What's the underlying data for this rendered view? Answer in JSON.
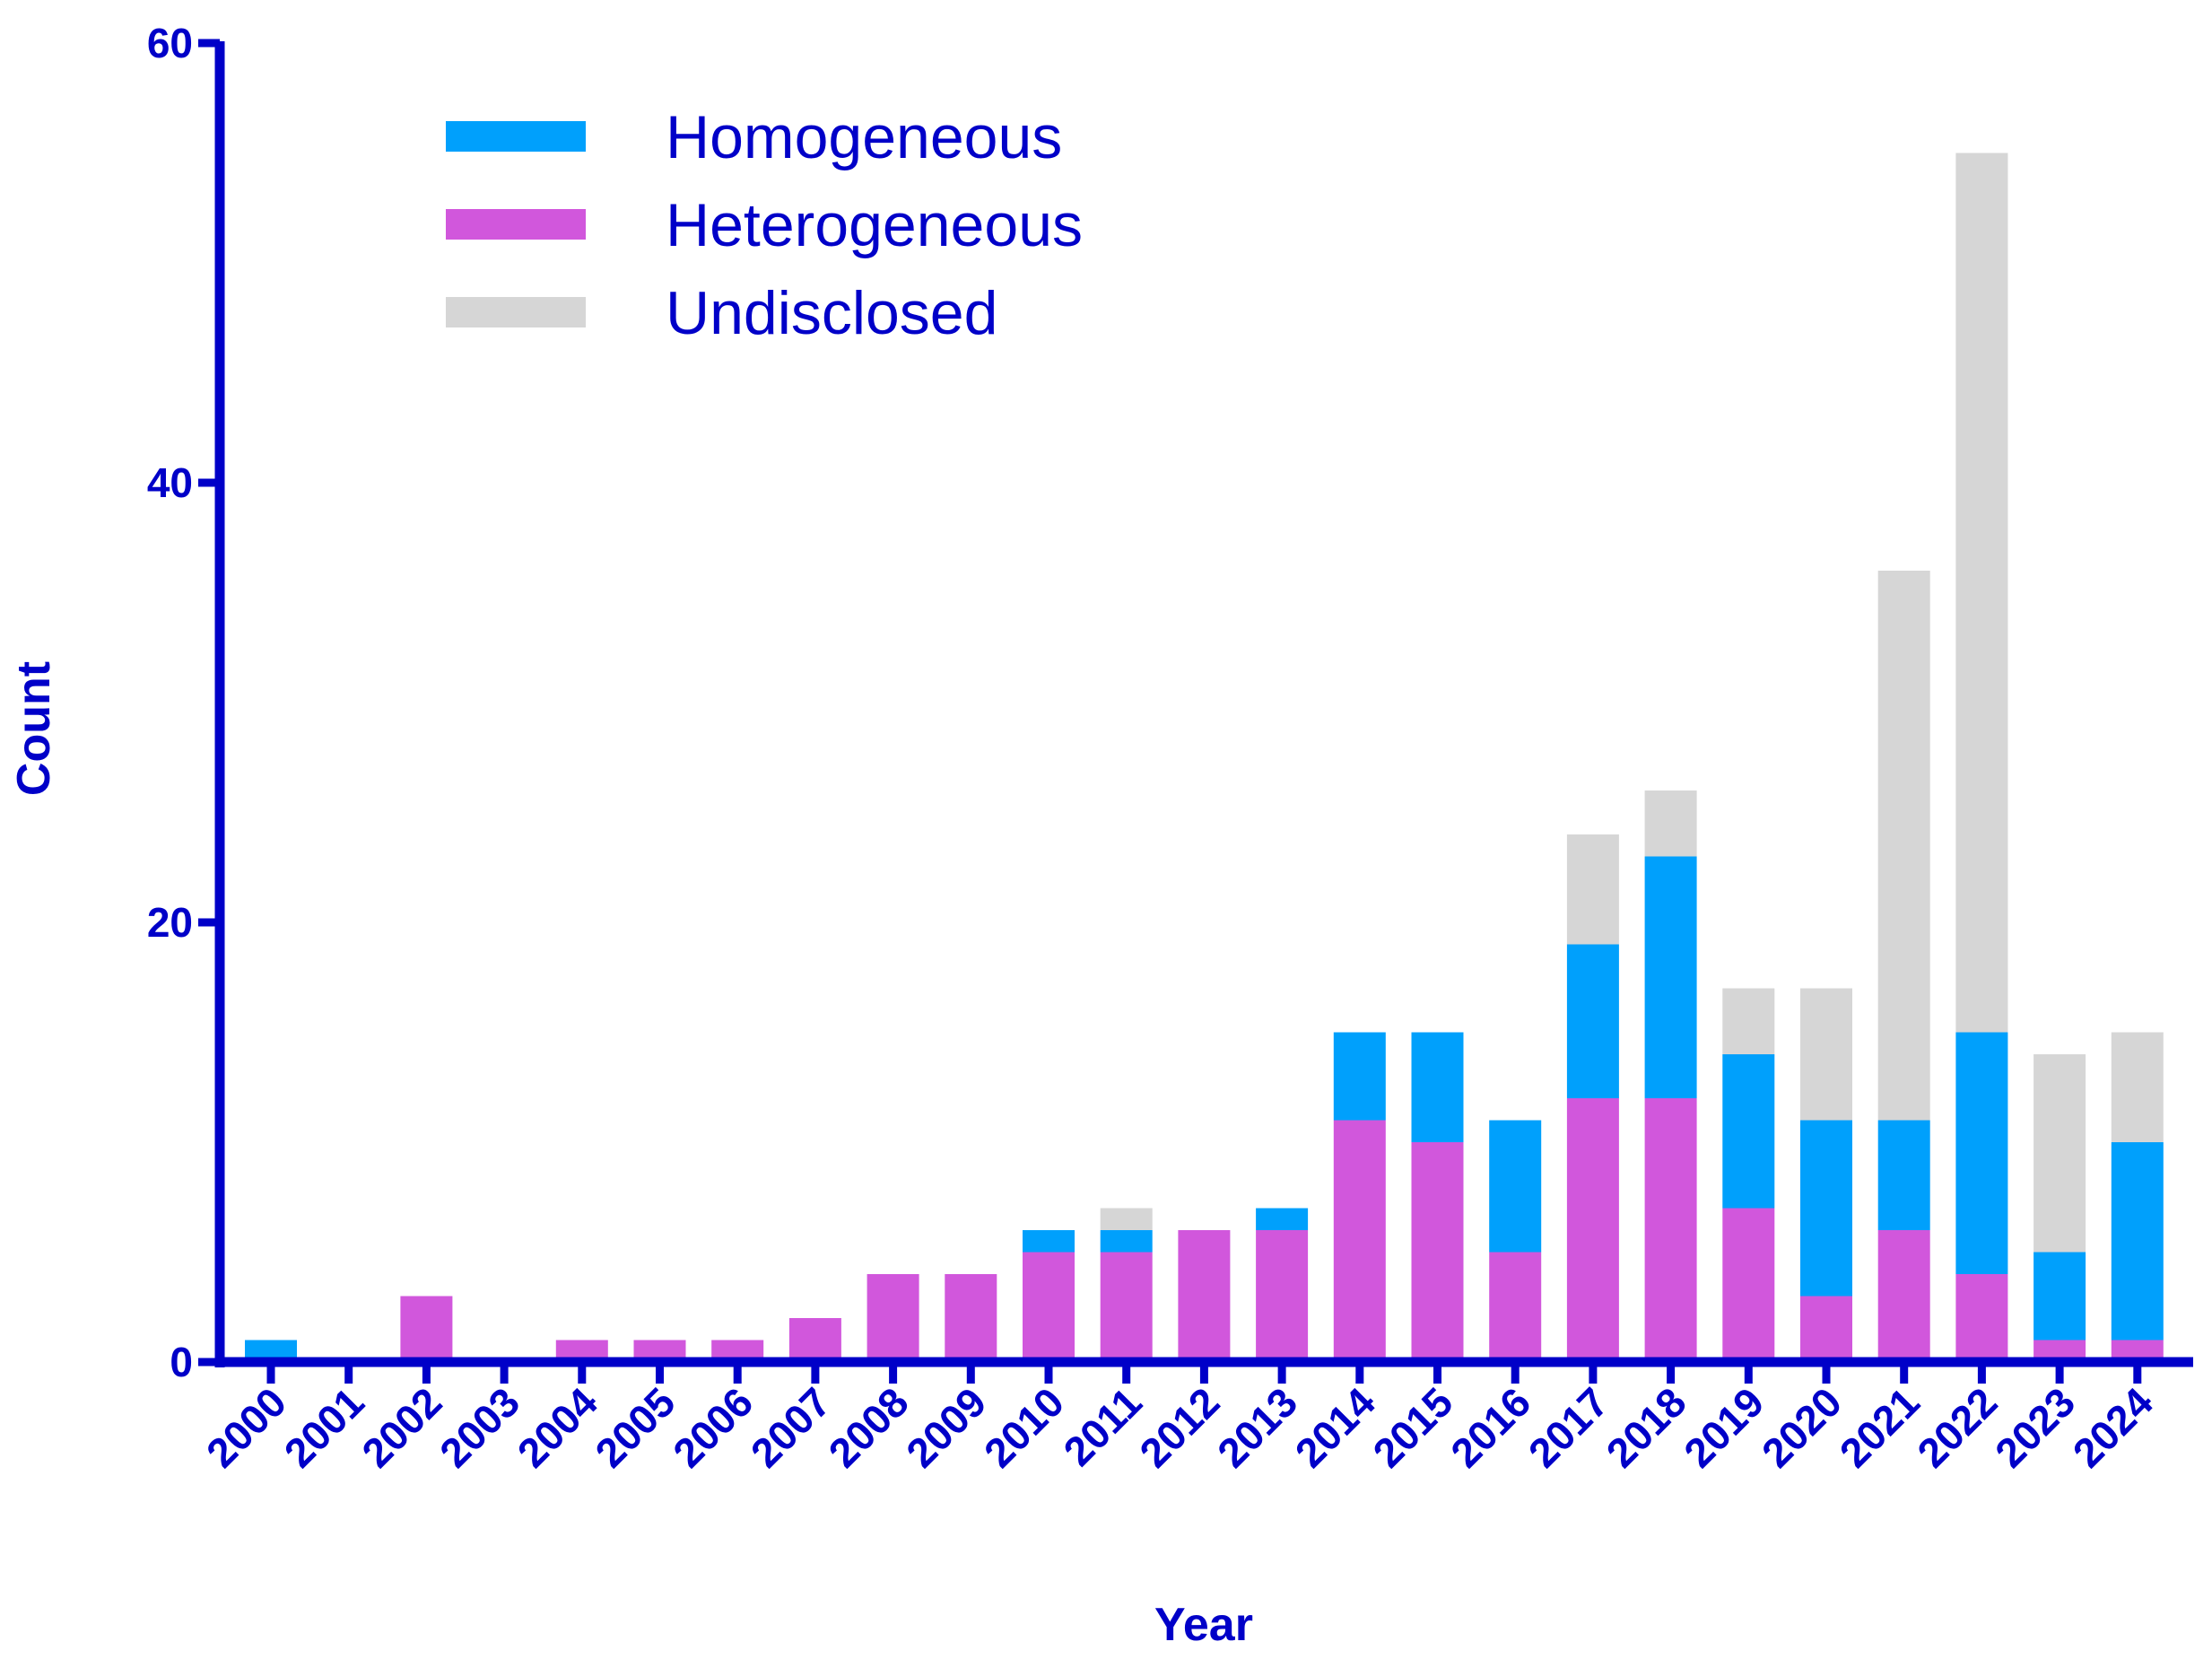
{
  "chart_data": {
    "type": "bar",
    "stacked": true,
    "categories": [
      "2000",
      "2001",
      "2002",
      "2003",
      "2004",
      "2005",
      "2006",
      "2007",
      "2008",
      "2009",
      "2010",
      "2011",
      "2012",
      "2013",
      "2014",
      "2015",
      "2016",
      "2017",
      "2018",
      "2019",
      "2020",
      "2021",
      "2022",
      "2023",
      "2024"
    ],
    "series": [
      {
        "name": "Heterogeneous",
        "color": "#d157dc",
        "values": [
          0,
          0,
          3,
          0,
          1,
          1,
          1,
          2,
          4,
          4,
          5,
          5,
          6,
          6,
          11,
          10,
          5,
          12,
          12,
          7,
          3,
          6,
          4,
          1,
          1
        ]
      },
      {
        "name": "Homogeneous",
        "color": "#00a0fc",
        "values": [
          1,
          0,
          0,
          0,
          0,
          0,
          0,
          0,
          0,
          0,
          1,
          1,
          0,
          1,
          4,
          5,
          6,
          7,
          11,
          7,
          8,
          5,
          11,
          4,
          9
        ]
      },
      {
        "name": "Undisclosed",
        "color": "#d6d6d6",
        "values": [
          0,
          0,
          0,
          0,
          0,
          0,
          0,
          0,
          0,
          0,
          0,
          1,
          0,
          0,
          0,
          0,
          0,
          5,
          3,
          3,
          6,
          25,
          40,
          9,
          5
        ]
      }
    ],
    "legend_order": [
      "Homogeneous",
      "Heterogeneous",
      "Undisclosed"
    ],
    "xlabel": "Year",
    "ylabel": "Count",
    "ylim": [
      0,
      60
    ],
    "yticks": [
      0,
      20,
      40,
      60
    ],
    "grid": false,
    "legend_position": "top-left",
    "axis_color": "#0000c8"
  }
}
